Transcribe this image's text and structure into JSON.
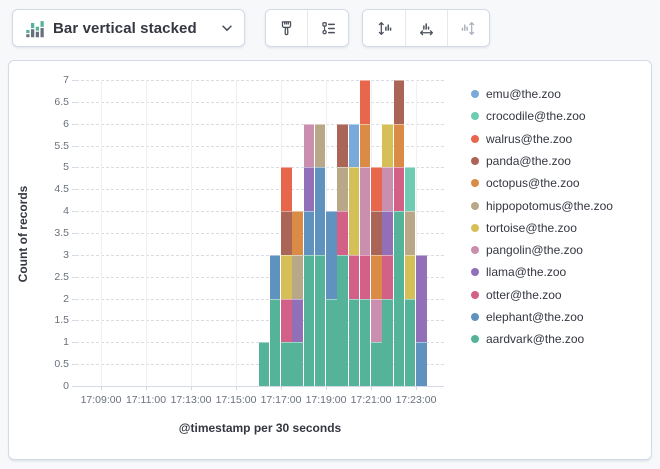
{
  "toolbar": {
    "chart_type_button": {
      "label": "Bar vertical stacked",
      "icon": "bar-vertical-stacked-icon",
      "chevron": "chevron-down-icon"
    },
    "button_groups": [
      {
        "buttons": [
          {
            "icon": "brush-visual-options-icon",
            "disabled": false
          },
          {
            "icon": "legend-settings-icon",
            "disabled": false
          }
        ]
      },
      {
        "buttons": [
          {
            "icon": "left-axis-icon",
            "disabled": false
          },
          {
            "icon": "bottom-axis-icon",
            "disabled": false
          },
          {
            "icon": "right-axis-icon",
            "disabled": true
          }
        ]
      }
    ]
  },
  "colors": {
    "accent_green": "#54B399",
    "icon_gray": "#69707d",
    "border": "#d3dae6",
    "text_dark": "#343741",
    "text_muted": "#69707d",
    "disabled_icon": "#aab2bf"
  },
  "chart_data": {
    "type": "bar",
    "stacked": true,
    "title": "",
    "xlabel": "@timestamp per 30 seconds",
    "ylabel": "Count of records",
    "ylim": [
      0,
      7
    ],
    "y_tick_step": 0.5,
    "grid": true,
    "legend_position": "right",
    "x_axis_tick_labels": [
      "17:09:00",
      "17:11:00",
      "17:13:00",
      "17:15:00",
      "17:17:00",
      "17:19:00",
      "17:21:00",
      "17:23:00"
    ],
    "bucket_seconds": 30,
    "categories": [
      "17:16:00",
      "17:16:30",
      "17:17:00",
      "17:17:30",
      "17:18:00",
      "17:18:30",
      "17:19:00",
      "17:19:30",
      "17:20:00",
      "17:20:30",
      "17:21:00",
      "17:21:30",
      "17:22:00",
      "17:22:30",
      "17:23:00"
    ],
    "series": [
      {
        "name": "aardvark@the.zoo",
        "color": "#54B399",
        "values": [
          1,
          2,
          1,
          1,
          3,
          3,
          2,
          3,
          2,
          2,
          1,
          2,
          4,
          2,
          0
        ]
      },
      {
        "name": "elephant@the.zoo",
        "color": "#6092C0",
        "values": [
          0,
          1,
          0,
          0,
          1,
          2,
          2,
          0,
          0,
          0,
          0,
          0,
          0,
          0,
          1
        ]
      },
      {
        "name": "otter@the.zoo",
        "color": "#D36086",
        "values": [
          0,
          0,
          1,
          0,
          0,
          0,
          0,
          1,
          1,
          1,
          0,
          1,
          1,
          0,
          0
        ]
      },
      {
        "name": "llama@the.zoo",
        "color": "#9170B8",
        "values": [
          0,
          0,
          0,
          1,
          1,
          0,
          0,
          0,
          0,
          0,
          0,
          1,
          0,
          0,
          2
        ]
      },
      {
        "name": "pangolin@the.zoo",
        "color": "#CA8EAE",
        "values": [
          0,
          0,
          0,
          0,
          1,
          0,
          0,
          0,
          0,
          2,
          1,
          1,
          0,
          0,
          0
        ]
      },
      {
        "name": "tortoise@the.zoo",
        "color": "#D6BF57",
        "values": [
          0,
          0,
          1,
          0,
          0,
          0,
          0,
          0,
          2,
          0,
          0,
          1,
          0,
          1,
          0
        ]
      },
      {
        "name": "hippopotomus@the.zoo",
        "color": "#B9A888",
        "values": [
          0,
          0,
          0,
          1,
          0,
          1,
          0,
          1,
          0,
          0,
          0,
          0,
          0,
          1,
          0
        ]
      },
      {
        "name": "octopus@the.zoo",
        "color": "#DA8B45",
        "values": [
          0,
          0,
          0,
          1,
          0,
          0,
          0,
          0,
          0,
          1,
          1,
          0,
          1,
          0,
          0
        ]
      },
      {
        "name": "panda@the.zoo",
        "color": "#AA6556",
        "values": [
          0,
          0,
          1,
          0,
          0,
          0,
          0,
          1,
          0,
          0,
          1,
          0,
          1,
          0,
          0
        ]
      },
      {
        "name": "walrus@the.zoo",
        "color": "#E7664C",
        "values": [
          0,
          0,
          1,
          0,
          0,
          0,
          0,
          0,
          0,
          1,
          1,
          0,
          0,
          0,
          0
        ]
      },
      {
        "name": "crocodile@the.zoo",
        "color": "#6DCCB1",
        "values": [
          0,
          0,
          0,
          0,
          0,
          0,
          0,
          0,
          0,
          0,
          0,
          0,
          0,
          1,
          0
        ]
      },
      {
        "name": "emu@the.zoo",
        "color": "#79AAD9",
        "values": [
          0,
          0,
          0,
          0,
          0,
          0,
          0,
          0,
          1,
          0,
          0,
          0,
          0,
          0,
          0
        ]
      }
    ]
  }
}
